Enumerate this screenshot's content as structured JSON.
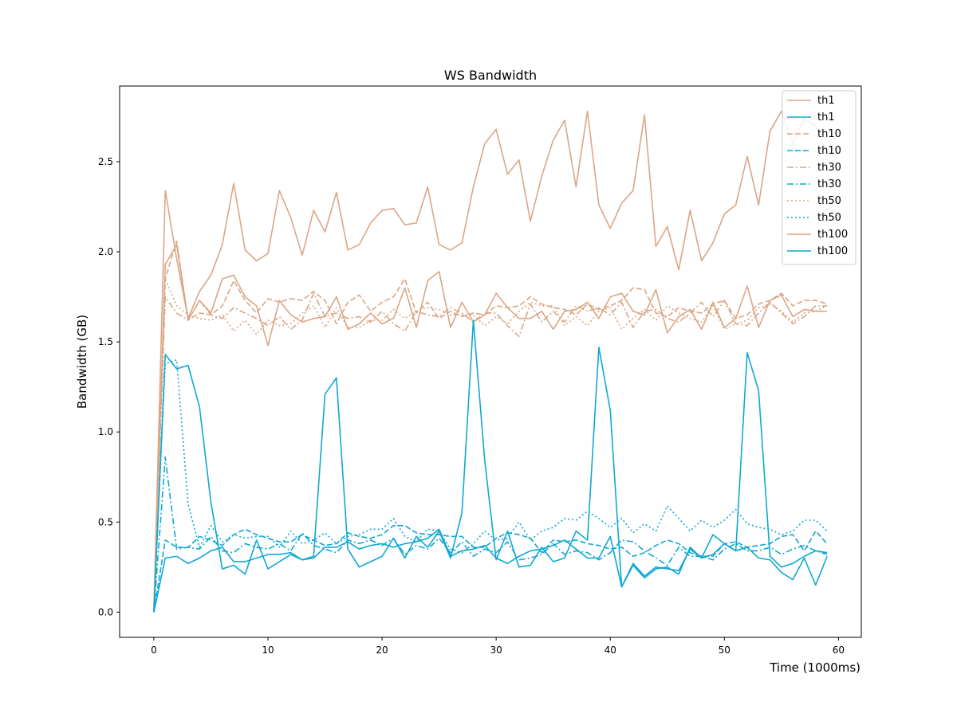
{
  "chart_data": {
    "type": "line",
    "title": "WS Bandwidth",
    "xlabel": "Time (1000ms)",
    "ylabel": "Bandwidth (GB)",
    "xlim": [
      -3,
      62
    ],
    "ylim": [
      -0.14,
      2.92
    ],
    "xticks": [
      0,
      10,
      20,
      30,
      40,
      50,
      60
    ],
    "xtick_labels": [
      "0",
      "10",
      "20",
      "30",
      "40",
      "50",
      "60"
    ],
    "yticks": [
      0.0,
      0.5,
      1.0,
      1.5,
      2.0,
      2.5
    ],
    "ytick_labels": [
      "0.0",
      "0.5",
      "1.0",
      "1.5",
      "2.0",
      "2.5"
    ],
    "grid": false,
    "legend_position": "top-right",
    "colors": {
      "orange": "#dba685",
      "blue": "#0fa8d4"
    },
    "series": [
      {
        "name": "th1",
        "color": "orange",
        "dash": "solid",
        "values": [
          0.02,
          1.93,
          2.04,
          1.62,
          1.73,
          1.66,
          1.85,
          1.87,
          1.75,
          1.7,
          1.48,
          1.73,
          1.65,
          1.61,
          1.63,
          1.64,
          1.75,
          1.57,
          1.6,
          1.66,
          1.6,
          1.63,
          1.8,
          1.58,
          1.84,
          1.89,
          1.58,
          1.72,
          1.61,
          1.65,
          1.77,
          1.69,
          1.63,
          1.63,
          1.67,
          1.57,
          1.67,
          1.68,
          1.72,
          1.63,
          1.75,
          1.77,
          1.67,
          1.65,
          1.79,
          1.55,
          1.64,
          1.68,
          1.57,
          1.72,
          1.58,
          1.63,
          1.81,
          1.58,
          1.73,
          1.76,
          1.64,
          1.68,
          1.67,
          1.67
        ]
      },
      {
        "name": "th1",
        "color": "blue",
        "dash": "solid",
        "values": [
          0.0,
          0.3,
          0.31,
          0.27,
          0.3,
          0.34,
          0.36,
          0.28,
          0.28,
          0.3,
          0.32,
          0.32,
          0.33,
          0.29,
          0.3,
          0.36,
          0.36,
          0.39,
          0.35,
          0.37,
          0.38,
          0.36,
          0.38,
          0.39,
          0.41,
          0.46,
          0.31,
          0.34,
          0.35,
          0.37,
          0.3,
          0.27,
          0.31,
          0.34,
          0.35,
          0.37,
          0.4,
          0.35,
          0.3,
          0.3,
          0.42,
          0.14,
          0.26,
          0.19,
          0.24,
          0.25,
          0.21,
          0.36,
          0.3,
          0.32,
          0.38,
          0.34,
          0.36,
          0.3,
          0.29,
          0.22,
          0.18,
          0.3,
          0.15,
          0.31
        ]
      },
      {
        "name": "th10",
        "color": "orange",
        "dash": "dashed",
        "values": [
          0.02,
          1.85,
          2.06,
          1.62,
          1.66,
          1.65,
          1.7,
          1.84,
          1.73,
          1.66,
          1.74,
          1.72,
          1.74,
          1.73,
          1.78,
          1.73,
          1.6,
          1.72,
          1.76,
          1.67,
          1.72,
          1.75,
          1.85,
          1.66,
          1.72,
          1.63,
          1.67,
          1.64,
          1.66,
          1.65,
          1.7,
          1.69,
          1.7,
          1.75,
          1.71,
          1.69,
          1.68,
          1.65,
          1.71,
          1.68,
          1.7,
          1.73,
          1.8,
          1.79,
          1.66,
          1.64,
          1.69,
          1.67,
          1.66,
          1.71,
          1.73,
          1.63,
          1.65,
          1.71,
          1.73,
          1.77,
          1.7,
          1.73,
          1.73,
          1.71
        ]
      },
      {
        "name": "th10",
        "color": "blue",
        "dash": "dashed",
        "values": [
          0.0,
          0.4,
          0.36,
          0.36,
          0.42,
          0.4,
          0.37,
          0.43,
          0.46,
          0.43,
          0.41,
          0.39,
          0.39,
          0.43,
          0.4,
          0.37,
          0.38,
          0.44,
          0.42,
          0.41,
          0.43,
          0.48,
          0.48,
          0.44,
          0.43,
          0.43,
          0.42,
          0.42,
          0.36,
          0.36,
          0.41,
          0.44,
          0.43,
          0.41,
          0.33,
          0.4,
          0.39,
          0.4,
          0.38,
          0.37,
          0.35,
          0.36,
          0.31,
          0.33,
          0.37,
          0.4,
          0.38,
          0.33,
          0.31,
          0.31,
          0.38,
          0.39,
          0.36,
          0.37,
          0.38,
          0.42,
          0.43,
          0.34,
          0.45,
          0.38
        ]
      },
      {
        "name": "th30",
        "color": "orange",
        "dash": "dashdot",
        "values": [
          0.02,
          1.75,
          1.66,
          1.62,
          1.73,
          1.65,
          1.63,
          1.69,
          1.66,
          1.63,
          1.59,
          1.64,
          1.57,
          1.62,
          1.77,
          1.64,
          1.66,
          1.63,
          1.64,
          1.61,
          1.67,
          1.6,
          1.56,
          1.67,
          1.65,
          1.64,
          1.69,
          1.66,
          1.61,
          1.66,
          1.66,
          1.59,
          1.53,
          1.71,
          1.61,
          1.67,
          1.61,
          1.7,
          1.67,
          1.69,
          1.65,
          1.72,
          1.58,
          1.67,
          1.68,
          1.63,
          1.61,
          1.66,
          1.72,
          1.64,
          1.73,
          1.6,
          1.59,
          1.66,
          1.72,
          1.66,
          1.6,
          1.64,
          1.7,
          1.7
        ]
      },
      {
        "name": "th30",
        "color": "blue",
        "dash": "dashdot",
        "values": [
          0.0,
          0.86,
          0.35,
          0.36,
          0.35,
          0.42,
          0.34,
          0.33,
          0.38,
          0.36,
          0.35,
          0.38,
          0.34,
          0.44,
          0.37,
          0.35,
          0.33,
          0.4,
          0.38,
          0.4,
          0.37,
          0.41,
          0.32,
          0.37,
          0.35,
          0.41,
          0.33,
          0.39,
          0.31,
          0.35,
          0.33,
          0.39,
          0.29,
          0.3,
          0.32,
          0.38,
          0.32,
          0.34,
          0.33,
          0.29,
          0.33,
          0.4,
          0.39,
          0.34,
          0.3,
          0.26,
          0.36,
          0.31,
          0.31,
          0.29,
          0.35,
          0.38,
          0.34,
          0.34,
          0.36,
          0.32,
          0.35,
          0.37,
          0.34,
          0.32
        ]
      },
      {
        "name": "th50",
        "color": "orange",
        "dash": "dotted",
        "values": [
          0.02,
          1.85,
          1.7,
          1.65,
          1.63,
          1.62,
          1.65,
          1.56,
          1.62,
          1.54,
          1.62,
          1.59,
          1.6,
          1.66,
          1.7,
          1.58,
          1.69,
          1.58,
          1.58,
          1.62,
          1.62,
          1.68,
          1.63,
          1.67,
          1.69,
          1.68,
          1.65,
          1.65,
          1.65,
          1.59,
          1.64,
          1.6,
          1.67,
          1.72,
          1.7,
          1.7,
          1.59,
          1.64,
          1.59,
          1.67,
          1.69,
          1.57,
          1.63,
          1.68,
          1.62,
          1.7,
          1.66,
          1.63,
          1.61,
          1.7,
          1.57,
          1.6,
          1.62,
          1.69,
          1.71,
          1.67,
          1.61,
          1.66,
          1.67,
          1.7
        ]
      },
      {
        "name": "th50",
        "color": "blue",
        "dash": "dotted",
        "values": [
          0.0,
          1.38,
          1.4,
          0.6,
          0.36,
          0.48,
          0.39,
          0.43,
          0.41,
          0.42,
          0.42,
          0.36,
          0.45,
          0.38,
          0.4,
          0.44,
          0.38,
          0.42,
          0.43,
          0.46,
          0.46,
          0.52,
          0.42,
          0.39,
          0.46,
          0.45,
          0.35,
          0.33,
          0.38,
          0.45,
          0.4,
          0.41,
          0.5,
          0.4,
          0.45,
          0.47,
          0.52,
          0.51,
          0.56,
          0.52,
          0.47,
          0.52,
          0.44,
          0.49,
          0.45,
          0.59,
          0.52,
          0.45,
          0.51,
          0.47,
          0.51,
          0.57,
          0.49,
          0.47,
          0.46,
          0.43,
          0.45,
          0.51,
          0.51,
          0.45
        ]
      },
      {
        "name": "th100",
        "color": "orange",
        "dash": "solid",
        "values": [
          0.02,
          2.34,
          1.96,
          1.63,
          1.78,
          1.87,
          2.04,
          2.38,
          2.01,
          1.95,
          1.99,
          2.34,
          2.19,
          1.98,
          2.23,
          2.11,
          2.33,
          2.01,
          2.04,
          2.16,
          2.23,
          2.24,
          2.15,
          2.16,
          2.36,
          2.04,
          2.01,
          2.05,
          2.36,
          2.6,
          2.68,
          2.43,
          2.51,
          2.17,
          2.42,
          2.62,
          2.73,
          2.36,
          2.78,
          2.26,
          2.13,
          2.27,
          2.34,
          2.76,
          2.03,
          2.14,
          1.9,
          2.23,
          1.95,
          2.05,
          2.21,
          2.26,
          2.53,
          2.26,
          2.67,
          2.78,
          2.6,
          2.74,
          2.7,
          2.55
        ]
      },
      {
        "name": "th100",
        "color": "blue",
        "dash": "solid",
        "values": [
          0.0,
          1.43,
          1.35,
          1.37,
          1.14,
          0.61,
          0.24,
          0.26,
          0.21,
          0.4,
          0.24,
          0.28,
          0.32,
          0.29,
          0.31,
          1.21,
          1.3,
          0.35,
          0.25,
          0.28,
          0.31,
          0.41,
          0.3,
          0.42,
          0.36,
          0.45,
          0.3,
          0.55,
          1.62,
          0.84,
          0.29,
          0.45,
          0.25,
          0.26,
          0.36,
          0.28,
          0.3,
          0.45,
          0.4,
          1.47,
          1.12,
          0.14,
          0.27,
          0.2,
          0.25,
          0.24,
          0.23,
          0.35,
          0.3,
          0.43,
          0.38,
          0.34,
          1.44,
          1.23,
          0.31,
          0.25,
          0.27,
          0.31,
          0.34,
          0.33
        ]
      }
    ]
  }
}
